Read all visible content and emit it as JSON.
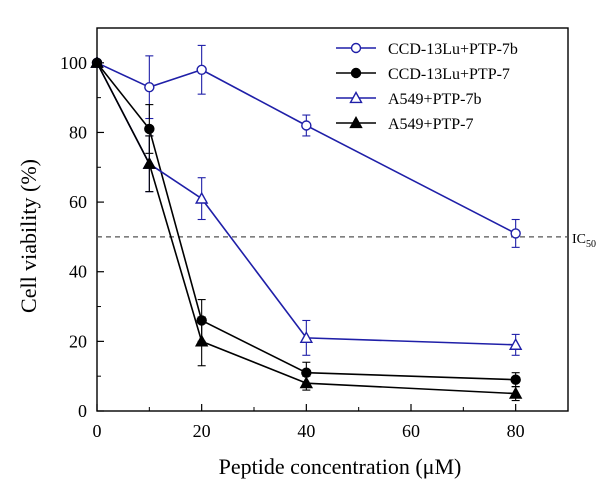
{
  "chart_data": {
    "type": "line",
    "title": "",
    "xlabel": "Peptide concentration (μM)",
    "ylabel": "Cell viability (%)",
    "xlim": [
      0,
      90
    ],
    "ylim": [
      0,
      110
    ],
    "xticks": [
      0,
      20,
      40,
      60,
      80
    ],
    "yticks": [
      0,
      20,
      40,
      60,
      80,
      100
    ],
    "x": [
      0,
      10,
      20,
      40,
      80
    ],
    "grid": false,
    "legend_position": "top-right",
    "reference_line": {
      "y": 50,
      "label": "IC",
      "label_subscript": "50",
      "style": "dashed",
      "color": "#555555"
    },
    "series": [
      {
        "name": "CCD-13Lu+PTP-7b",
        "color": "#1f1fa8",
        "marker": "circle",
        "filled": false,
        "values": [
          100,
          93,
          98,
          82,
          51
        ],
        "errors": [
          0,
          9,
          7,
          3,
          4
        ]
      },
      {
        "name": "CCD-13Lu+PTP-7",
        "color": "#000000",
        "marker": "circle",
        "filled": true,
        "values": [
          100,
          81,
          26,
          11,
          9
        ],
        "errors": [
          0,
          7,
          6,
          3,
          2
        ]
      },
      {
        "name": "A549+PTP-7b",
        "color": "#1f1fa8",
        "marker": "triangle",
        "filled": false,
        "values": [
          100,
          71,
          61,
          21,
          19
        ],
        "errors": [
          0,
          8,
          6,
          5,
          3
        ]
      },
      {
        "name": "A549+PTP-7",
        "color": "#000000",
        "marker": "triangle",
        "filled": true,
        "values": [
          100,
          71,
          20,
          8,
          5
        ],
        "errors": [
          0,
          8,
          7,
          2,
          2
        ]
      }
    ]
  }
}
